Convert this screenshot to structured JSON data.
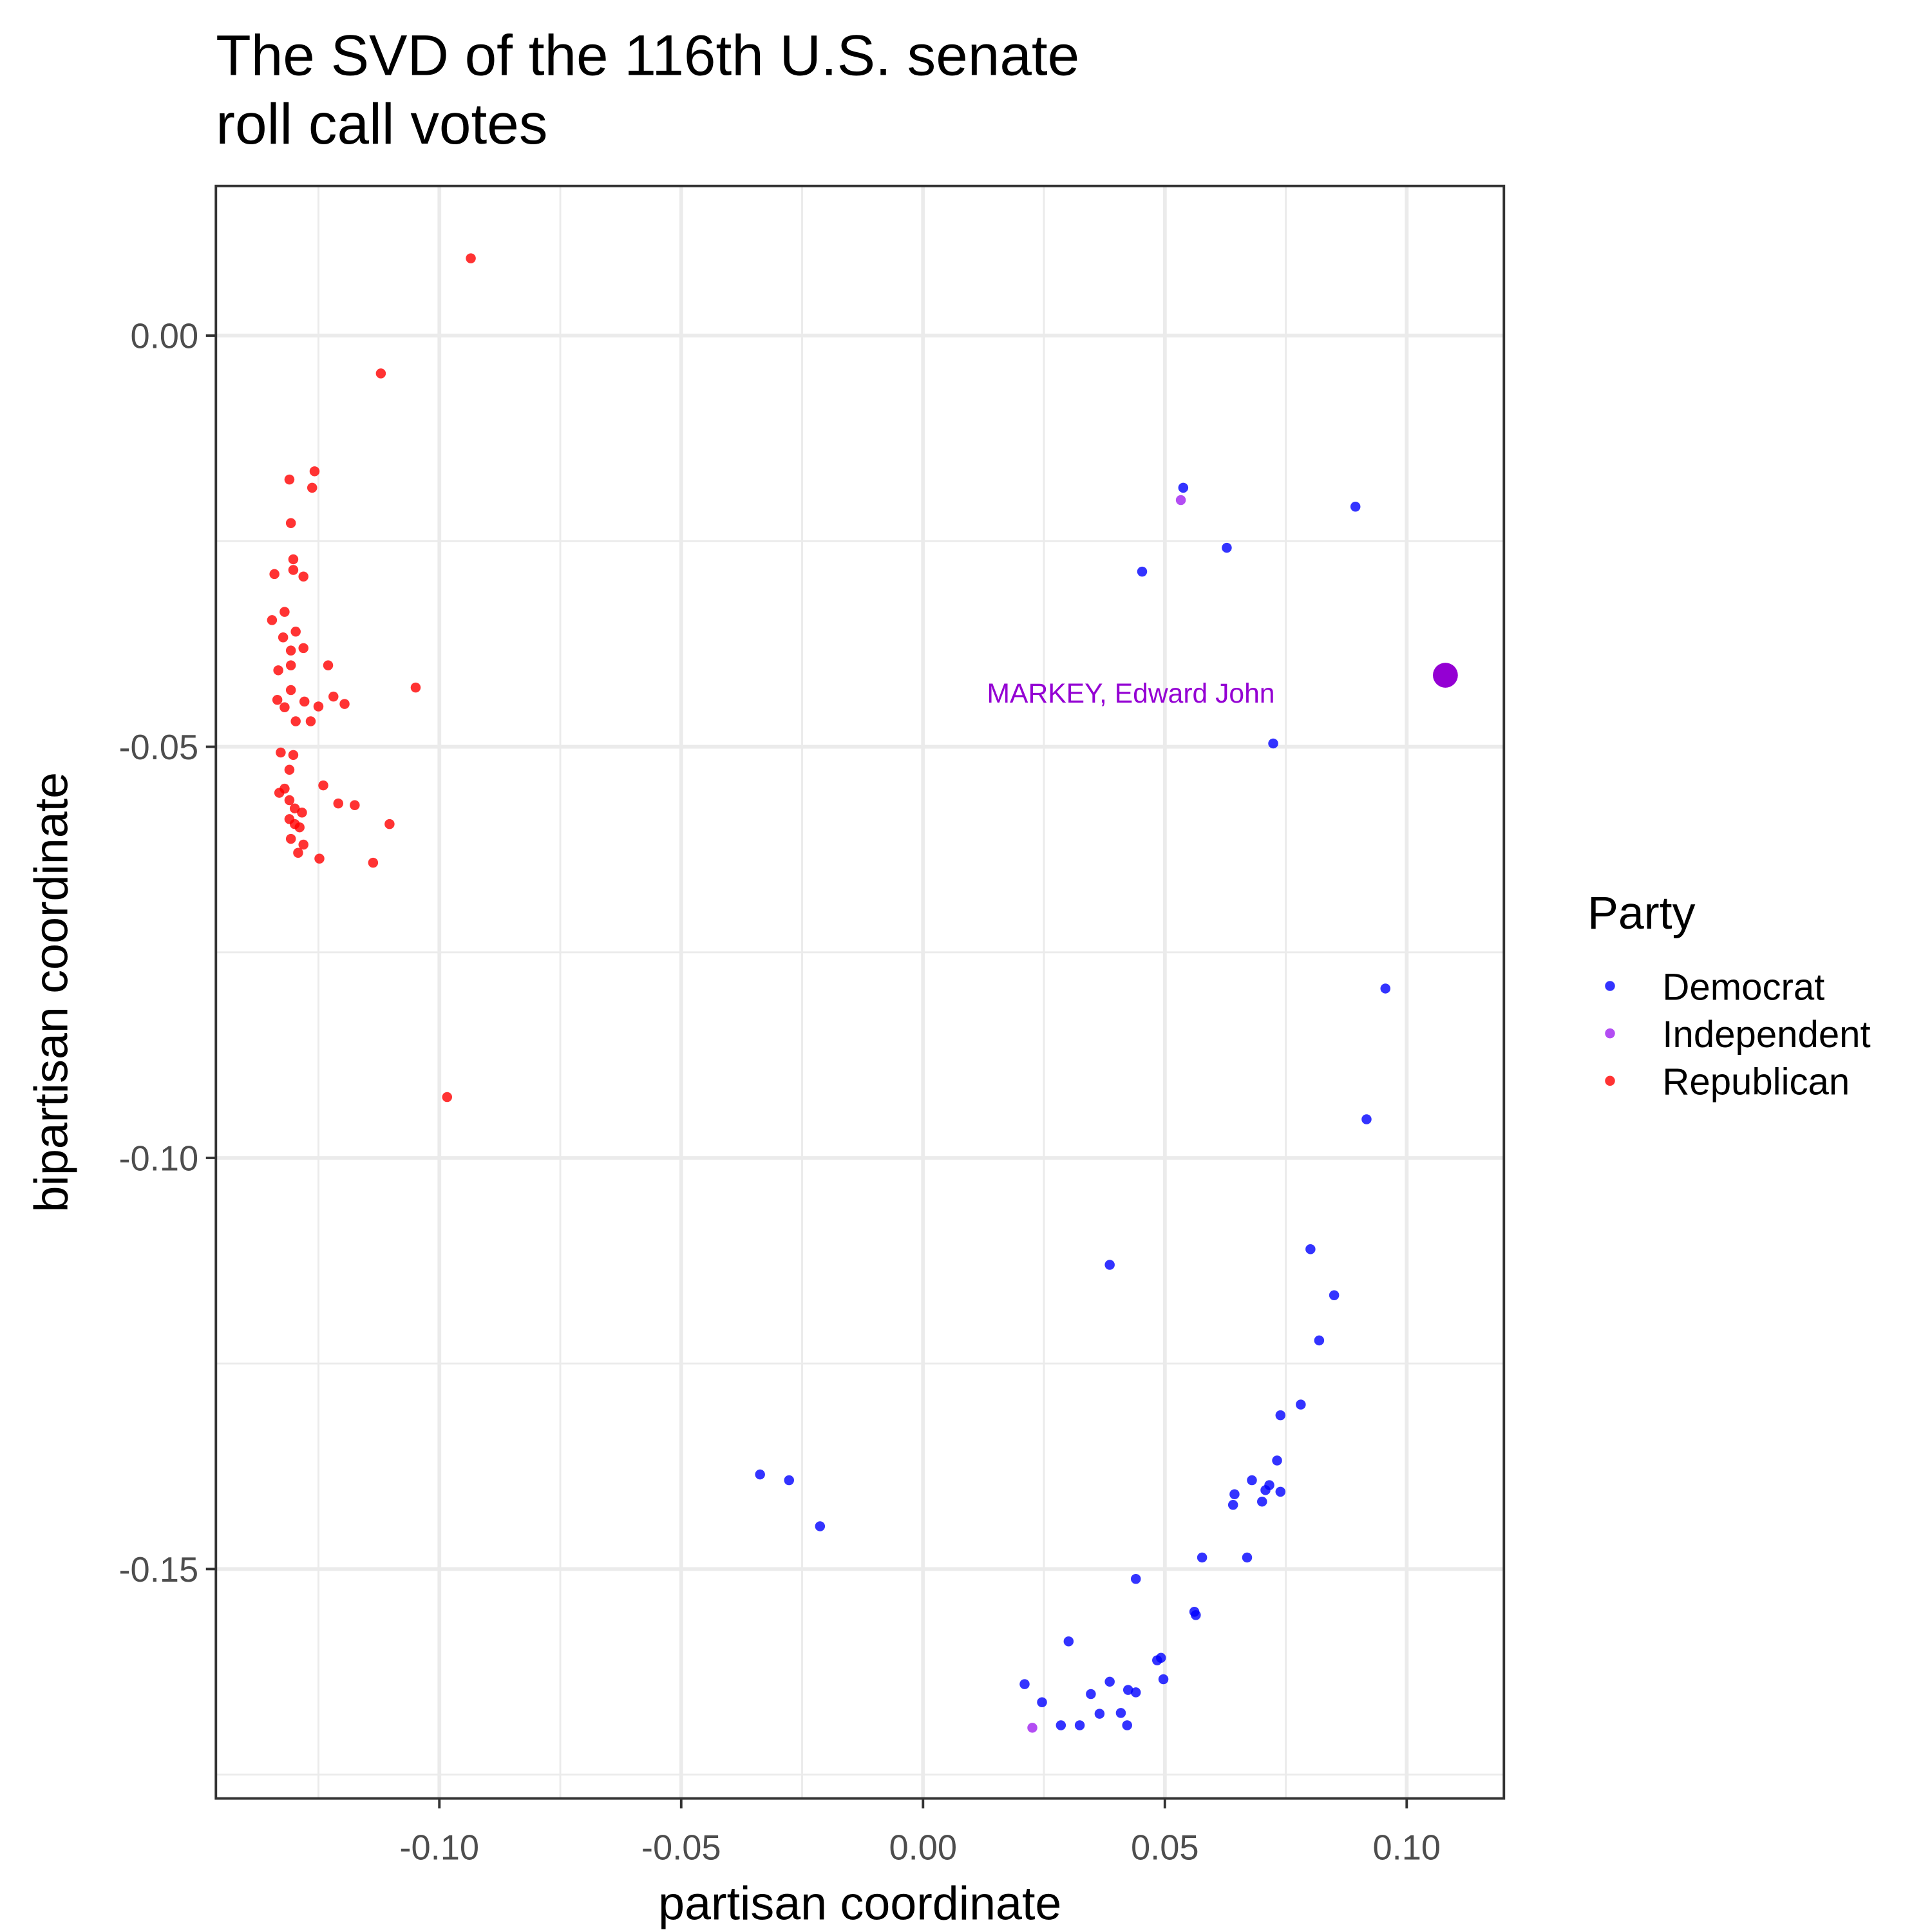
{
  "chart_data": {
    "type": "scatter",
    "title": [
      "The SVD of the 116th U.S. senate",
      "roll call votes"
    ],
    "x_label": "partisan coordinate",
    "y_label": "bipartisan coordinate",
    "legend_title": "Party",
    "xlim": [
      -0.1462,
      0.1201
    ],
    "ylim": [
      -0.1779,
      0.0182
    ],
    "xticks": [
      {
        "value": -0.1,
        "label": "-0.10"
      },
      {
        "value": -0.05,
        "label": "-0.05"
      },
      {
        "value": 0,
        "label": "0.00"
      },
      {
        "value": 0.05,
        "label": "0.05"
      },
      {
        "value": 0.1,
        "label": "0.10"
      }
    ],
    "yticks": [
      {
        "value": 0,
        "label": "0.00"
      },
      {
        "value": -0.05,
        "label": "-0.05"
      },
      {
        "value": -0.1,
        "label": "-0.10"
      },
      {
        "value": -0.15,
        "label": "-0.15"
      }
    ],
    "x_minor_grid": [
      -0.125,
      -0.075,
      -0.025,
      0.025,
      0.075
    ],
    "y_minor_grid": [
      -0.025,
      -0.075,
      -0.125,
      -0.175
    ],
    "grid": true,
    "series": [
      {
        "name": "Democrat",
        "color": "#0000ff",
        "x": [
          0.0538,
          0.0894,
          0.0628,
          0.0453,
          0.0724,
          0.0956,
          0.0917,
          0.0801,
          0.0386,
          0.085,
          0.0819,
          0.0781,
          0.0739,
          0.0732,
          0.068,
          0.0739,
          0.0716,
          0.0708,
          0.0644,
          0.0701,
          0.0641,
          -0.0337,
          -0.0277,
          -0.0213,
          0.0577,
          0.067,
          0.044,
          0.0561,
          0.0564,
          0.0301,
          0.0492,
          0.0484,
          0.0497,
          0.0386,
          0.021,
          0.0424,
          0.044,
          0.0347,
          0.0246,
          0.0409,
          0.0365,
          0.0285,
          0.0324,
          0.0422
        ],
        "values": [
          -0.0185,
          -0.0208,
          -0.0258,
          -0.0287,
          -0.0496,
          -0.0794,
          -0.0953,
          -0.1111,
          -0.113,
          -0.1167,
          -0.1222,
          -0.13,
          -0.1313,
          -0.1368,
          -0.1392,
          -0.1406,
          -0.1398,
          -0.1404,
          -0.1409,
          -0.1418,
          -0.1422,
          -0.1385,
          -0.1392,
          -0.1448,
          -0.1486,
          -0.1486,
          -0.1512,
          -0.1552,
          -0.1556,
          -0.1588,
          -0.1608,
          -0.1611,
          -0.1634,
          -0.1637,
          -0.164,
          -0.1647,
          -0.165,
          -0.1652,
          -0.1662,
          -0.1675,
          -0.1676,
          -0.169,
          -0.169,
          -0.169
        ]
      },
      {
        "name": "Independent",
        "color": "#a020f0",
        "x": [
          0.0533,
          0.0226
        ],
        "values": [
          -0.02,
          -0.1693
        ]
      },
      {
        "name": "Republican",
        "color": "#ff0000",
        "x": [
          -0.0935,
          -0.1121,
          -0.1258,
          -0.131,
          -0.1263,
          -0.1307,
          -0.1302,
          -0.1302,
          -0.1281,
          -0.1341,
          -0.132,
          -0.1346,
          -0.1297,
          -0.1323,
          -0.1281,
          -0.1307,
          -0.123,
          -0.1307,
          -0.1333,
          -0.1049,
          -0.1307,
          -0.1219,
          -0.1335,
          -0.1279,
          -0.1196,
          -0.132,
          -0.125,
          -0.1297,
          -0.1266,
          -0.1328,
          -0.1302,
          -0.131,
          -0.124,
          -0.132,
          -0.1331,
          -0.131,
          -0.1209,
          -0.1175,
          -0.1299,
          -0.1284,
          -0.131,
          -0.1299,
          -0.1289,
          -0.1103,
          -0.1307,
          -0.1281,
          -0.1292,
          -0.1248,
          -0.1137,
          -0.0984
        ],
        "values": [
          0.0094,
          -0.0046,
          -0.0165,
          -0.0175,
          -0.0185,
          -0.0228,
          -0.0272,
          -0.0285,
          -0.0293,
          -0.029,
          -0.0336,
          -0.0346,
          -0.036,
          -0.0367,
          -0.038,
          -0.0383,
          -0.0401,
          -0.0401,
          -0.0407,
          -0.0428,
          -0.0431,
          -0.0439,
          -0.0443,
          -0.0445,
          -0.0448,
          -0.0452,
          -0.0451,
          -0.0469,
          -0.0469,
          -0.0507,
          -0.051,
          -0.0528,
          -0.0547,
          -0.0551,
          -0.0556,
          -0.0565,
          -0.0569,
          -0.0571,
          -0.0575,
          -0.058,
          -0.0588,
          -0.0594,
          -0.0598,
          -0.0594,
          -0.0612,
          -0.0619,
          -0.0629,
          -0.0636,
          -0.0641,
          -0.0926
        ]
      }
    ],
    "highlight": {
      "name": "MARKEY, Edward John",
      "x": 0.108,
      "y": -0.0413,
      "color": "#9400d3"
    }
  }
}
